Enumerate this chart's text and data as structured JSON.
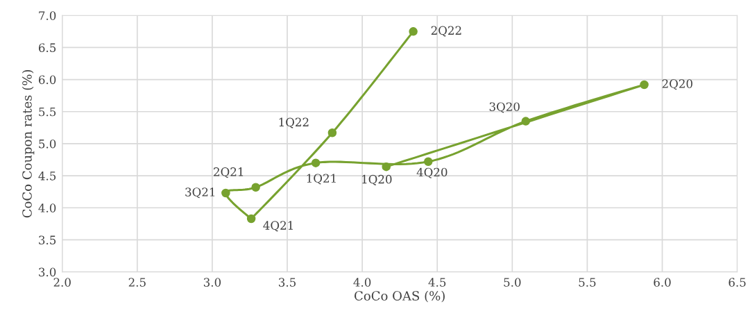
{
  "chart_data": {
    "type": "line",
    "xlabel": "CoCo OAS (%)",
    "ylabel": "CoCo Coupon rates (%)",
    "x": [
      4.16,
      5.88,
      5.09,
      4.44,
      3.69,
      3.29,
      3.09,
      3.26,
      3.8,
      4.34
    ],
    "series": [
      {
        "color": "#77a22f",
        "values": [
          4.64,
          5.92,
          5.35,
          4.72,
          4.7,
          4.32,
          4.23,
          3.83,
          5.17,
          6.75
        ]
      }
    ],
    "annotations": [
      {
        "text": "1Q20",
        "x": 4.16,
        "y": 4.64
      },
      {
        "text": "2Q20",
        "x": 5.88,
        "y": 5.92
      },
      {
        "text": "3Q20",
        "x": 5.09,
        "y": 5.35
      },
      {
        "text": "4Q20",
        "x": 4.44,
        "y": 4.72
      },
      {
        "text": "1Q21",
        "x": 3.69,
        "y": 4.7
      },
      {
        "text": "2Q21",
        "x": 3.29,
        "y": 4.32
      },
      {
        "text": "3Q21",
        "x": 3.09,
        "y": 4.23
      },
      {
        "text": "4Q21",
        "x": 3.26,
        "y": 3.83
      },
      {
        "text": "1Q22",
        "x": 3.8,
        "y": 5.17
      },
      {
        "text": "2Q22",
        "x": 4.34,
        "y": 6.75
      }
    ],
    "xlim": [
      2.0,
      6.5
    ],
    "xticks": [
      {
        "value": 2.0,
        "label": "2.0"
      },
      {
        "value": 2.5,
        "label": "2.5"
      },
      {
        "value": 3.0,
        "label": "3.0"
      },
      {
        "value": 3.5,
        "label": "3.5"
      },
      {
        "value": 4.0,
        "label": "4.0"
      },
      {
        "value": 4.5,
        "label": "4.5"
      },
      {
        "value": 5.0,
        "label": "5.0"
      },
      {
        "value": 5.5,
        "label": "5.5"
      },
      {
        "value": 6.0,
        "label": "6.0"
      },
      {
        "value": 6.5,
        "label": "6.5"
      }
    ],
    "ylim": [
      3.0,
      7.0
    ],
    "yticks": [
      {
        "value": 3.0,
        "label": "3.0"
      },
      {
        "value": 3.5,
        "label": "3.5"
      },
      {
        "value": 4.0,
        "label": "4.0"
      },
      {
        "value": 4.5,
        "label": "4.5"
      },
      {
        "value": 5.0,
        "label": "5.0"
      },
      {
        "value": 5.5,
        "label": "5.5"
      },
      {
        "value": 6.0,
        "label": "6.0"
      },
      {
        "value": 6.5,
        "label": "6.5"
      },
      {
        "value": 7.0,
        "label": "7.0"
      }
    ],
    "grid": true,
    "marker": "circle",
    "line_style": "solid"
  }
}
